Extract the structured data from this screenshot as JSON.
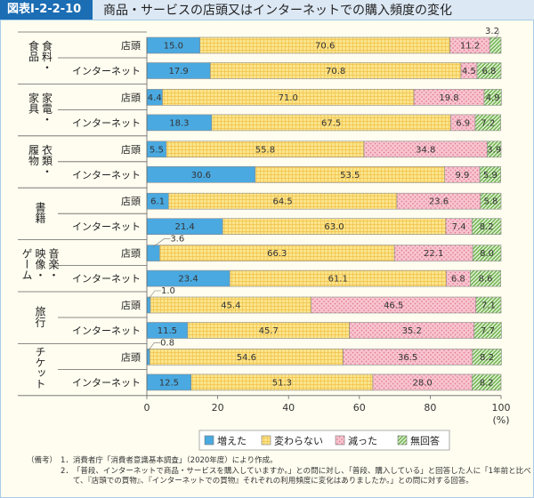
{
  "header": {
    "figure_no": "図表Ⅰ-2-2-10",
    "title": "商品・サービスの店頭又はインターネットでの購入頻度の変化"
  },
  "chart_data": {
    "type": "bar",
    "orientation": "horizontal-stacked",
    "xlim": [
      0,
      100
    ],
    "xticks": [
      0,
      20,
      40,
      60,
      80,
      100
    ],
    "xunit": "(%)",
    "grid": false,
    "legend_placement": "bottom",
    "row_labels": [
      "店頭",
      "インターネット"
    ],
    "series": [
      {
        "name": "増えた",
        "color": "#4aa9e0"
      },
      {
        "name": "変わらない",
        "color": "#fbe58c"
      },
      {
        "name": "減った",
        "color": "#f7c4cf"
      },
      {
        "name": "無回答",
        "color": "#b5da9b"
      }
    ],
    "groups": [
      {
        "label": "食料・食品",
        "rows": [
          [
            15.0,
            70.6,
            11.2,
            3.2
          ],
          [
            17.9,
            70.8,
            4.5,
            6.8
          ]
        ]
      },
      {
        "label": "家電・家具",
        "rows": [
          [
            4.4,
            71.0,
            19.8,
            4.9
          ],
          [
            18.3,
            67.5,
            6.9,
            7.2
          ]
        ]
      },
      {
        "label": "衣類・履物",
        "rows": [
          [
            5.5,
            55.8,
            34.8,
            3.9
          ],
          [
            30.6,
            53.5,
            9.9,
            5.9
          ]
        ]
      },
      {
        "label": "書籍",
        "rows": [
          [
            6.1,
            64.5,
            23.6,
            5.8
          ],
          [
            21.4,
            63.0,
            7.4,
            8.2
          ]
        ]
      },
      {
        "label": "音楽・映像・ゲーム",
        "rows": [
          [
            3.6,
            66.3,
            22.1,
            8.0
          ],
          [
            23.4,
            61.1,
            6.8,
            8.6
          ]
        ]
      },
      {
        "label": "旅行",
        "rows": [
          [
            1.0,
            45.4,
            46.5,
            7.1
          ],
          [
            11.5,
            45.7,
            35.2,
            7.7
          ]
        ]
      },
      {
        "label": "チケット",
        "rows": [
          [
            0.8,
            54.6,
            36.5,
            8.2
          ],
          [
            12.5,
            51.3,
            28.0,
            8.2
          ]
        ]
      }
    ]
  },
  "notes": {
    "label": "（備考）",
    "items": [
      {
        "no": "1．",
        "text": "消費者庁「消費者意識基本調査」（2020年度）により作成。"
      },
      {
        "no": "2．",
        "text": "「普段、インターネットで商品・サービスを購入していますか。」との問に対し、「普段、購入している」と回答した人に「1年前と比べて、『店頭での買物』、『インターネットでの買物』それぞれの利用頻度に変化はありましたか。」との問に対する回答。"
      }
    ]
  }
}
